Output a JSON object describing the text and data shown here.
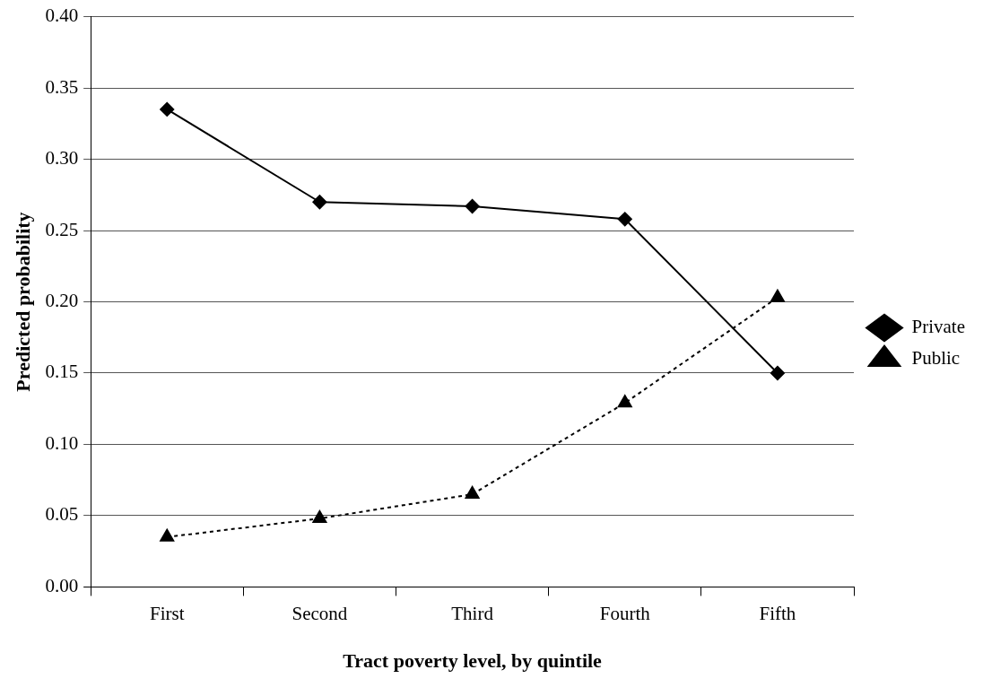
{
  "chart_data": {
    "type": "line",
    "xlabel": "Tract poverty level, by quintile",
    "ylabel": "Predicted probability",
    "categories": [
      "First",
      "Second",
      "Third",
      "Fourth",
      "Fifth"
    ],
    "series": [
      {
        "name": "Private",
        "color": "#000000",
        "marker": "diamond",
        "line_style": "solid",
        "values": [
          0.335,
          0.27,
          0.267,
          0.258,
          0.15
        ]
      },
      {
        "name": "Public",
        "color": "#000000",
        "marker": "triangle",
        "line_style": "dashed",
        "values": [
          0.035,
          0.048,
          0.065,
          0.129,
          0.203
        ]
      }
    ],
    "ylim": [
      0,
      0.4
    ],
    "yticks": [
      {
        "value": 0,
        "label": "0.00"
      },
      {
        "value": 0.05,
        "label": "0.05"
      },
      {
        "value": 0.1,
        "label": "0.10"
      },
      {
        "value": 0.15,
        "label": "0.15"
      },
      {
        "value": 0.2,
        "label": "0.20"
      },
      {
        "value": 0.25,
        "label": "0.25"
      },
      {
        "value": 0.3,
        "label": "0.30"
      },
      {
        "value": 0.35,
        "label": "0.35"
      },
      {
        "value": 0.4,
        "label": "0.40"
      }
    ],
    "grid": "y",
    "legend": "right"
  }
}
